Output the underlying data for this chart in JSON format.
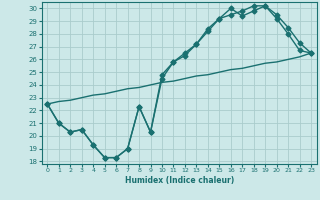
{
  "xlabel": "Humidex (Indice chaleur)",
  "xlim": [
    -0.5,
    23.5
  ],
  "ylim": [
    17.8,
    30.5
  ],
  "xticks": [
    0,
    1,
    2,
    3,
    4,
    5,
    6,
    7,
    8,
    9,
    10,
    11,
    12,
    13,
    14,
    15,
    16,
    17,
    18,
    19,
    20,
    21,
    22,
    23
  ],
  "yticks": [
    18,
    19,
    20,
    21,
    22,
    23,
    24,
    25,
    26,
    27,
    28,
    29,
    30
  ],
  "bg_color": "#cce8e8",
  "grid_color": "#aacccc",
  "line_color": "#1a7070",
  "line1_x": [
    0,
    1,
    2,
    3,
    4,
    5,
    6,
    7,
    8,
    9,
    10,
    11,
    12,
    13,
    14,
    15,
    16,
    17,
    18,
    19,
    20,
    21,
    22,
    23
  ],
  "line1_y": [
    22.5,
    21.0,
    20.3,
    20.5,
    19.3,
    18.3,
    18.3,
    19.0,
    22.3,
    20.3,
    24.8,
    25.8,
    26.3,
    27.2,
    28.2,
    29.2,
    30.0,
    29.4,
    29.8,
    30.2,
    29.2,
    28.0,
    26.7,
    26.5
  ],
  "line2_x": [
    0,
    1,
    2,
    3,
    4,
    5,
    6,
    7,
    8,
    9,
    10,
    11,
    12,
    13,
    14,
    15,
    16,
    17,
    18,
    19,
    20,
    21,
    22,
    23
  ],
  "line2_y": [
    22.5,
    21.0,
    20.3,
    20.5,
    19.3,
    18.3,
    18.3,
    19.0,
    22.3,
    20.3,
    24.5,
    25.8,
    26.5,
    27.2,
    28.4,
    29.2,
    29.5,
    29.8,
    30.2,
    30.2,
    29.5,
    28.5,
    27.3,
    26.5
  ],
  "line3_x": [
    0,
    1,
    2,
    3,
    4,
    5,
    6,
    7,
    8,
    9,
    10,
    11,
    12,
    13,
    14,
    15,
    16,
    17,
    18,
    19,
    20,
    21,
    22,
    23
  ],
  "line3_y": [
    22.5,
    22.7,
    22.8,
    23.0,
    23.2,
    23.3,
    23.5,
    23.7,
    23.8,
    24.0,
    24.2,
    24.3,
    24.5,
    24.7,
    24.8,
    25.0,
    25.2,
    25.3,
    25.5,
    25.7,
    25.8,
    26.0,
    26.2,
    26.5
  ],
  "marker": "D",
  "markersize": 2.5,
  "linewidth": 1.0
}
